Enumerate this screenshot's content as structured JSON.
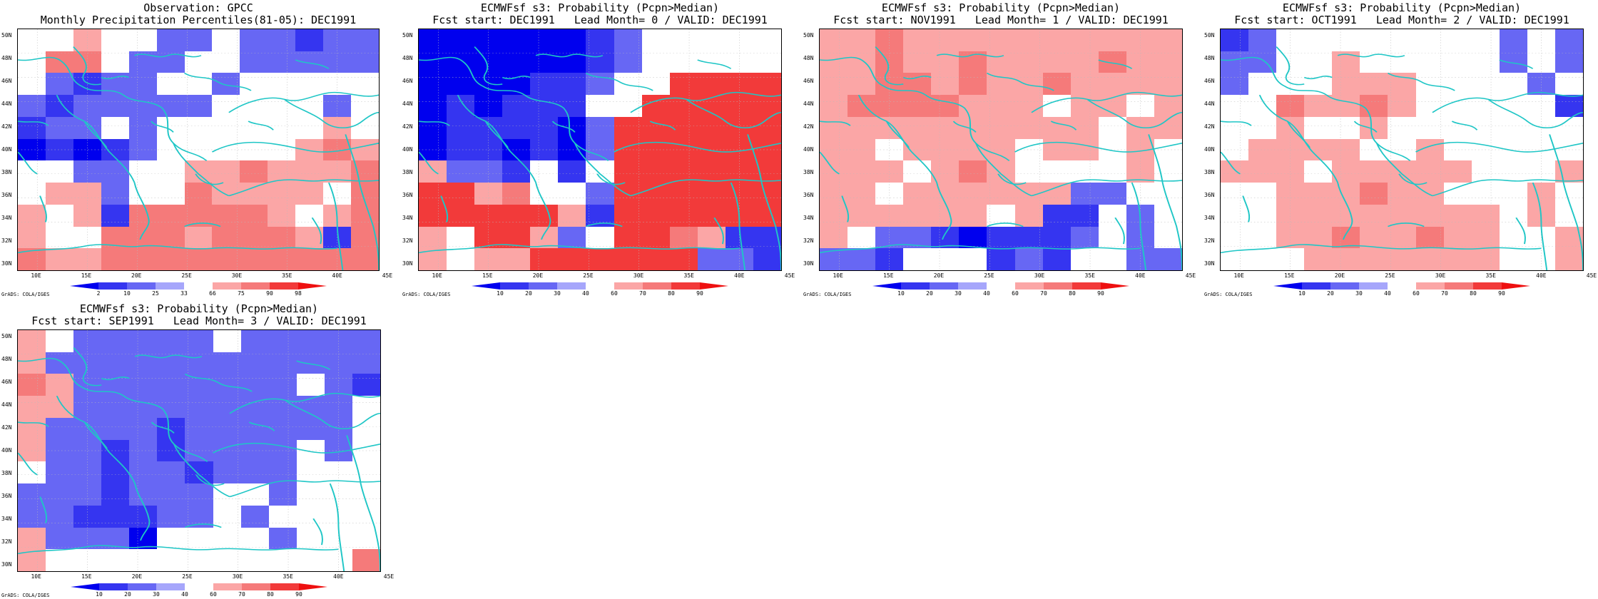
{
  "panels": [
    {
      "id": "obs",
      "title1": "Observation: GPCC",
      "title2": "Monthly Precipitation Percentiles(81-05): DEC1991",
      "colorbar": {
        "labels": [
          "2",
          "10",
          "25",
          "33",
          "66",
          "75",
          "90",
          "98"
        ]
      },
      "grid": [
        [
          0,
          0,
          1,
          0,
          0,
          -1,
          -1,
          0,
          -1,
          -1,
          -2,
          -1,
          -1
        ],
        [
          0,
          2,
          2,
          0,
          -1,
          -1,
          0,
          0,
          -1,
          -1,
          -1,
          -1,
          -1
        ],
        [
          0,
          -1,
          -2,
          -1,
          -1,
          0,
          0,
          -1,
          0,
          0,
          0,
          0,
          0
        ],
        [
          -1,
          -2,
          -1,
          -1,
          -1,
          -1,
          -1,
          0,
          0,
          0,
          0,
          -1,
          0
        ],
        [
          -2,
          -1,
          -1,
          0,
          -1,
          0,
          0,
          0,
          0,
          0,
          0,
          1,
          0
        ],
        [
          -3,
          -2,
          -3,
          -2,
          -1,
          0,
          0,
          0,
          0,
          0,
          1,
          2,
          1
        ],
        [
          0,
          0,
          -1,
          -1,
          0,
          0,
          1,
          1,
          2,
          1,
          1,
          1,
          2
        ],
        [
          0,
          1,
          1,
          -1,
          0,
          0,
          2,
          1,
          1,
          1,
          1,
          0,
          2
        ],
        [
          1,
          0,
          1,
          -2,
          2,
          2,
          2,
          2,
          2,
          1,
          0,
          1,
          2
        ],
        [
          1,
          0,
          0,
          2,
          2,
          2,
          1,
          2,
          2,
          2,
          1,
          -2,
          2
        ],
        [
          2,
          1,
          1,
          2,
          2,
          2,
          2,
          2,
          2,
          2,
          2,
          2,
          2
        ]
      ]
    },
    {
      "id": "lead0",
      "title1": "ECMWFsf s3: Probability (Pcpn>Median)",
      "title2": "Fcst start: DEC1991   Lead Month= 0 / VALID: DEC1991",
      "colorbar": {
        "labels": [
          "10",
          "20",
          "30",
          "40",
          "60",
          "70",
          "80",
          "90"
        ]
      },
      "grid": [
        [
          -3,
          -3,
          -3,
          -3,
          -3,
          -3,
          -2,
          -1,
          0,
          0,
          0,
          0,
          0
        ],
        [
          -3,
          -3,
          -3,
          -3,
          -3,
          -3,
          -2,
          -1,
          0,
          0,
          0,
          0,
          0
        ],
        [
          -3,
          -3,
          -3,
          -3,
          -2,
          -2,
          -1,
          0,
          0,
          3,
          3,
          3,
          3
        ],
        [
          -3,
          -2,
          -3,
          -2,
          -2,
          -2,
          0,
          0,
          3,
          3,
          3,
          3,
          3
        ],
        [
          -3,
          -2,
          -2,
          -2,
          -2,
          -3,
          -1,
          3,
          3,
          3,
          3,
          3,
          3
        ],
        [
          -3,
          -2,
          -2,
          -3,
          -2,
          -3,
          -1,
          3,
          3,
          3,
          3,
          3,
          3
        ],
        [
          1,
          -1,
          -1,
          -2,
          0,
          -2,
          0,
          3,
          3,
          3,
          3,
          3,
          3
        ],
        [
          3,
          3,
          1,
          2,
          0,
          0,
          -1,
          3,
          3,
          3,
          3,
          3,
          3
        ],
        [
          3,
          3,
          3,
          3,
          3,
          1,
          -2,
          3,
          3,
          3,
          3,
          3,
          3
        ],
        [
          1,
          0,
          3,
          3,
          1,
          -1,
          0,
          3,
          3,
          2,
          1,
          -2,
          -2
        ],
        [
          1,
          0,
          1,
          1,
          3,
          3,
          3,
          3,
          3,
          3,
          -1,
          -1,
          -2
        ]
      ]
    },
    {
      "id": "lead1",
      "title1": "ECMWFsf s3: Probability (Pcpn>Median)",
      "title2": "Fcst start: NOV1991   Lead Month= 1 / VALID: DEC1991",
      "colorbar": {
        "labels": [
          "10",
          "20",
          "30",
          "40",
          "60",
          "70",
          "80",
          "90"
        ]
      },
      "grid": [
        [
          1,
          1,
          2,
          1,
          1,
          1,
          1,
          1,
          1,
          1,
          1,
          1,
          1
        ],
        [
          1,
          1,
          2,
          1,
          1,
          2,
          1,
          1,
          1,
          1,
          2,
          1,
          1
        ],
        [
          1,
          1,
          2,
          2,
          1,
          2,
          1,
          1,
          2,
          1,
          1,
          1,
          1
        ],
        [
          1,
          2,
          2,
          2,
          2,
          1,
          1,
          1,
          0,
          1,
          1,
          0,
          1
        ],
        [
          1,
          1,
          1,
          1,
          1,
          1,
          1,
          1,
          1,
          1,
          0,
          1,
          1
        ],
        [
          1,
          1,
          0,
          1,
          1,
          1,
          1,
          0,
          1,
          1,
          0,
          1,
          0
        ],
        [
          1,
          1,
          1,
          0,
          1,
          2,
          1,
          0,
          0,
          0,
          0,
          1,
          0
        ],
        [
          1,
          1,
          0,
          1,
          1,
          1,
          1,
          1,
          1,
          -1,
          -1,
          0,
          0
        ],
        [
          1,
          1,
          1,
          1,
          1,
          1,
          0,
          1,
          -2,
          -2,
          0,
          -1,
          0
        ],
        [
          1,
          0,
          -1,
          -1,
          -2,
          -3,
          -2,
          -2,
          -2,
          -1,
          0,
          -1,
          0
        ],
        [
          -1,
          -1,
          -2,
          0,
          0,
          0,
          -2,
          -1,
          -2,
          0,
          0,
          -1,
          -1
        ]
      ]
    },
    {
      "id": "lead2",
      "title1": "ECMWFsf s3: Probability (Pcpn>Median)",
      "title2": "Fcst start: OCT1991   Lead Month= 2 / VALID: DEC1991",
      "colorbar": {
        "labels": [
          "10",
          "20",
          "30",
          "40",
          "60",
          "70",
          "80",
          "90"
        ]
      },
      "grid": [
        [
          -2,
          -1,
          0,
          0,
          0,
          0,
          0,
          0,
          0,
          0,
          -1,
          0,
          -1
        ],
        [
          -1,
          -1,
          0,
          0,
          1,
          0,
          0,
          0,
          0,
          0,
          -1,
          0,
          -1
        ],
        [
          -1,
          0,
          0,
          0,
          1,
          1,
          1,
          0,
          0,
          0,
          0,
          -1,
          0
        ],
        [
          0,
          0,
          2,
          1,
          1,
          2,
          1,
          0,
          0,
          0,
          0,
          0,
          -2
        ],
        [
          0,
          0,
          1,
          0,
          0,
          1,
          0,
          0,
          0,
          0,
          0,
          0,
          0
        ],
        [
          0,
          1,
          1,
          1,
          1,
          0,
          0,
          1,
          0,
          0,
          0,
          0,
          0
        ],
        [
          1,
          1,
          1,
          0,
          1,
          1,
          1,
          1,
          1,
          0,
          0,
          0,
          1
        ],
        [
          0,
          0,
          1,
          1,
          1,
          2,
          1,
          1,
          0,
          0,
          0,
          1,
          0
        ],
        [
          0,
          0,
          1,
          1,
          1,
          1,
          1,
          1,
          1,
          1,
          0,
          1,
          0
        ],
        [
          0,
          0,
          1,
          1,
          2,
          1,
          1,
          2,
          1,
          1,
          0,
          0,
          1
        ],
        [
          0,
          0,
          0,
          1,
          1,
          1,
          1,
          1,
          1,
          1,
          0,
          0,
          1
        ]
      ]
    },
    {
      "id": "lead3",
      "title1": "ECMWFsf s3: Probability (Pcpn>Median)",
      "title2": "Fcst start: SEP1991   Lead Month= 3 / VALID: DEC1991",
      "colorbar": {
        "labels": [
          "10",
          "20",
          "30",
          "40",
          "60",
          "70",
          "80",
          "90"
        ]
      },
      "grid": [
        [
          1,
          0,
          -1,
          -1,
          -1,
          -1,
          -1,
          0,
          -1,
          -1,
          -1,
          -1,
          -1
        ],
        [
          1,
          -1,
          -1,
          -1,
          -1,
          -1,
          -1,
          -1,
          -1,
          -1,
          -1,
          -1,
          -1
        ],
        [
          2,
          1,
          -1,
          -1,
          -1,
          -1,
          -1,
          -1,
          -1,
          -1,
          0,
          -1,
          -2
        ],
        [
          1,
          1,
          -1,
          -1,
          -1,
          -1,
          -1,
          -1,
          -1,
          -1,
          -1,
          -1,
          0
        ],
        [
          1,
          -1,
          -1,
          -1,
          -1,
          -2,
          -1,
          -1,
          -1,
          -1,
          -1,
          -1,
          0
        ],
        [
          1,
          -1,
          -1,
          -2,
          -1,
          -2,
          -1,
          -1,
          -1,
          -1,
          0,
          -1,
          0
        ],
        [
          0,
          -1,
          -1,
          -2,
          -1,
          -1,
          -2,
          -1,
          -1,
          -1,
          0,
          0,
          0
        ],
        [
          -1,
          -1,
          -1,
          -2,
          -1,
          -1,
          -1,
          0,
          0,
          -1,
          0,
          0,
          0
        ],
        [
          -1,
          -1,
          -2,
          -2,
          -2,
          -1,
          -1,
          0,
          -1,
          0,
          0,
          0,
          0
        ],
        [
          1,
          -1,
          -1,
          -1,
          -3,
          0,
          0,
          0,
          0,
          -1,
          0,
          0,
          0
        ],
        [
          1,
          0,
          0,
          0,
          0,
          0,
          0,
          0,
          0,
          0,
          0,
          0,
          2
        ]
      ]
    }
  ],
  "lat_labels": [
    "50N",
    "48N",
    "46N",
    "44N",
    "42N",
    "40N",
    "38N",
    "36N",
    "34N",
    "32N",
    "30N"
  ],
  "lon_labels": [
    "10E",
    "15E",
    "20E",
    "25E",
    "30E",
    "35E",
    "40E",
    "45E"
  ],
  "grads_label": "GrADS: COLA/IGES",
  "colors": {
    "blue_3": "#0000ee",
    "blue_2": "#3535f0",
    "blue_1": "#6767f4",
    "blue_0": "#a6a6fb",
    "red_0": "#fba6a6",
    "red_1": "#f57a7a",
    "red_2": "#f23a3a",
    "red_3": "#ee1010",
    "coast": "#1fc6c6"
  }
}
